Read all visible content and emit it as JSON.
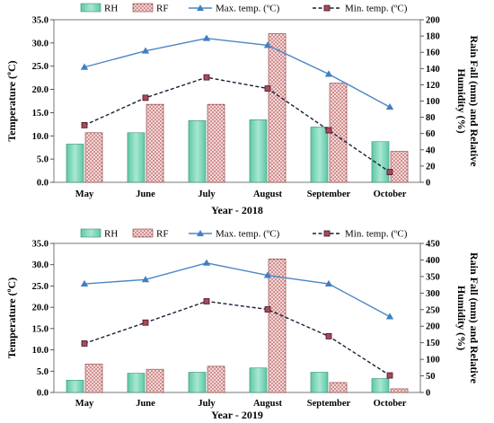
{
  "chart_data": [
    {
      "type": "bar",
      "xlabel": "Year - 2018",
      "ylabel": "Temperature (ºC)",
      "y2label": [
        "Rain Fall (mm) and Relative",
        "Humidity (%)"
      ],
      "categories": [
        "May",
        "June",
        "July",
        "August",
        "September",
        "October"
      ],
      "ylim": [
        0,
        35
      ],
      "yticks": [
        "0.0",
        "5.0",
        "10.0",
        "15.0",
        "20.0",
        "25.0",
        "30.0",
        "35.0"
      ],
      "y2lim": [
        0,
        200
      ],
      "y2ticks": [
        "0",
        "20",
        "40",
        "60",
        "80",
        "100",
        "120",
        "140",
        "160",
        "180",
        "200"
      ],
      "legend_position": "top",
      "series": [
        {
          "name": "RH",
          "axis": "right",
          "kind": "bar",
          "values": [
            47,
            61,
            76,
            77,
            68,
            50
          ]
        },
        {
          "name": "RF",
          "axis": "right",
          "kind": "bar",
          "values": [
            61,
            96,
            96,
            183,
            122,
            38
          ]
        },
        {
          "name": "Max. temp. (ºC)",
          "axis": "left",
          "kind": "line",
          "values": [
            24.8,
            28.3,
            31.0,
            29.5,
            23.3,
            16.2
          ]
        },
        {
          "name": "Min. temp. (ºC)",
          "axis": "left",
          "kind": "line",
          "values": [
            12.3,
            18.2,
            22.6,
            20.2,
            11.2,
            2.2
          ]
        }
      ]
    },
    {
      "type": "bar",
      "xlabel": "Year - 2019",
      "ylabel": "Temperature (ºC)",
      "y2label": [
        "Rain Fall (mm) and Relative",
        "Humidity (%)"
      ],
      "categories": [
        "May",
        "June",
        "July",
        "August",
        "September",
        "October"
      ],
      "ylim": [
        0,
        35
      ],
      "yticks": [
        "0.0",
        "5.0",
        "10.0",
        "15.0",
        "20.0",
        "25.0",
        "30.0",
        "35.0"
      ],
      "y2lim": [
        0,
        450
      ],
      "y2ticks": [
        "0",
        "50",
        "100",
        "150",
        "200",
        "250",
        "300",
        "350",
        "400",
        "450"
      ],
      "legend_position": "top",
      "series": [
        {
          "name": "RH",
          "axis": "right",
          "kind": "bar",
          "values": [
            37,
            58,
            61,
            74,
            61,
            42
          ]
        },
        {
          "name": "RF",
          "axis": "right",
          "kind": "bar",
          "values": [
            86,
            70,
            79,
            403,
            30,
            11
          ]
        },
        {
          "name": "Max. temp. (ºC)",
          "axis": "left",
          "kind": "line",
          "values": [
            25.5,
            26.5,
            30.4,
            27.5,
            25.5,
            17.8
          ]
        },
        {
          "name": "Min. temp. (ºC)",
          "axis": "left",
          "kind": "line",
          "values": [
            11.5,
            16.4,
            21.4,
            19.5,
            13.2,
            4.0
          ]
        }
      ]
    }
  ]
}
